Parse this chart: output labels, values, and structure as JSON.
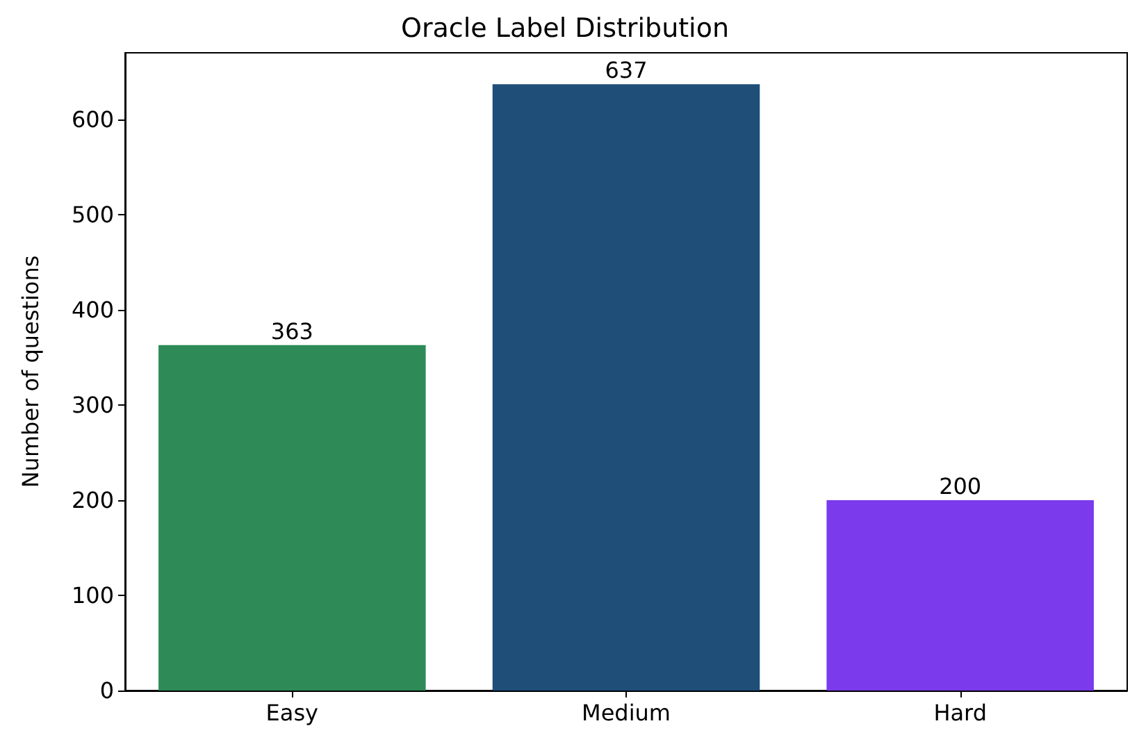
{
  "chart_data": {
    "type": "bar",
    "title": "Oracle Label Distribution",
    "ylabel": "Number of questions",
    "categories": [
      "Easy",
      "Medium",
      "Hard"
    ],
    "values": [
      363,
      637,
      200
    ],
    "colors": [
      "#2e8b57",
      "#1f4e79",
      "#7b3aec"
    ],
    "ylim": [
      0,
      670
    ],
    "yticks": [
      0,
      100,
      200,
      300,
      400,
      500,
      600
    ],
    "data_labels": true,
    "grid": false
  }
}
